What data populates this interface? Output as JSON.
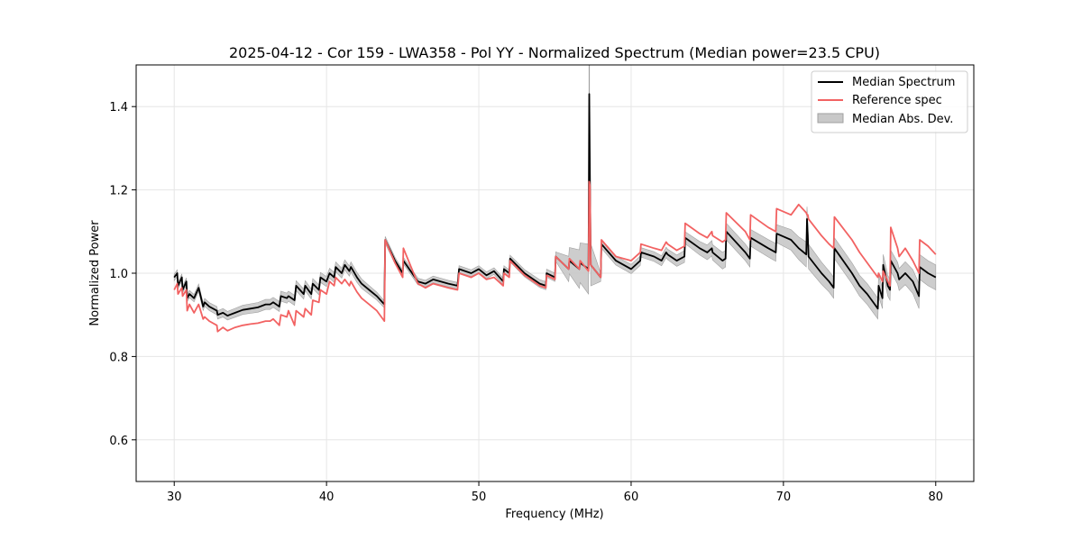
{
  "chart_data": {
    "type": "line",
    "title": "2025-04-12 - Cor 159 - LWA358 - Pol YY - Normalized Spectrum (Median power=23.5 CPU)",
    "xlabel": "Frequency (MHz)",
    "ylabel": "Normalized Power",
    "xlim": [
      27.5,
      82.5
    ],
    "ylim": [
      0.5,
      1.5
    ],
    "xticks": [
      30,
      40,
      50,
      60,
      70,
      80
    ],
    "yticks": [
      0.6,
      0.8,
      1.0,
      1.2,
      1.4
    ],
    "xtick_labels": [
      "30",
      "40",
      "50",
      "60",
      "70",
      "80"
    ],
    "ytick_labels": [
      "0.6",
      "0.8",
      "1.0",
      "1.2",
      "1.4"
    ],
    "grid": true,
    "legend_position": "top-right",
    "legend": [
      "Median Spectrum",
      "Reference spec",
      "Median Abs. Dev."
    ],
    "colors": {
      "median": "#000000",
      "reference": "#f26262",
      "mad_fill": "#c8c8c8",
      "mad_edge": "#a0a0a0",
      "grid": "#e6e6e6"
    },
    "series": [
      {
        "name": "Median Spectrum",
        "x": [
          30.0,
          30.2,
          30.25,
          30.5,
          30.55,
          30.8,
          30.85,
          31.0,
          31.3,
          31.6,
          31.9,
          32.0,
          32.3,
          32.8,
          32.85,
          33.2,
          33.5,
          34.0,
          34.5,
          35.0,
          35.5,
          36.0,
          36.3,
          36.5,
          36.9,
          37.0,
          37.4,
          37.5,
          37.9,
          38.0,
          38.5,
          38.6,
          39.0,
          39.1,
          39.5,
          39.6,
          40.0,
          40.2,
          40.5,
          40.6,
          41.0,
          41.2,
          41.5,
          41.6,
          42.0,
          42.3,
          42.8,
          43.3,
          43.8,
          43.85,
          44.5,
          45.0,
          45.05,
          46.0,
          46.5,
          47.0,
          47.5,
          48.0,
          48.6,
          48.7,
          49.5,
          50.0,
          50.5,
          51.0,
          51.6,
          51.65,
          52.0,
          52.05,
          53.0,
          54.0,
          54.4,
          54.45,
          55.0,
          55.05,
          55.9,
          55.95,
          56.6,
          56.65,
          57.2,
          57.25,
          57.3,
          57.35,
          58.0,
          58.05,
          59.0,
          60.0,
          60.6,
          60.65,
          61.5,
          62.0,
          62.3,
          62.4,
          63.0,
          63.5,
          63.55,
          64.5,
          65.0,
          65.3,
          65.35,
          66.0,
          66.2,
          66.25,
          67.5,
          67.8,
          67.85,
          69.0,
          69.5,
          69.55,
          70.5,
          71.0,
          71.5,
          71.55,
          71.6,
          71.65,
          72.5,
          73.0,
          73.3,
          73.35,
          74.5,
          75.0,
          75.5,
          76.0,
          76.2,
          76.25,
          76.5,
          76.55,
          76.8,
          76.85,
          77.0,
          77.05,
          77.5,
          77.6,
          78.0,
          78.5,
          78.9,
          78.95,
          79.5,
          80.0
        ],
        "values": [
          0.99,
          1.0,
          0.97,
          0.99,
          0.96,
          0.98,
          0.94,
          0.95,
          0.94,
          0.965,
          0.92,
          0.93,
          0.92,
          0.91,
          0.9,
          0.905,
          0.898,
          0.905,
          0.912,
          0.915,
          0.918,
          0.925,
          0.925,
          0.93,
          0.92,
          0.945,
          0.94,
          0.945,
          0.935,
          0.97,
          0.95,
          0.97,
          0.95,
          0.975,
          0.96,
          0.99,
          0.98,
          1.0,
          0.99,
          1.015,
          1.0,
          1.02,
          1.005,
          1.015,
          0.99,
          0.975,
          0.96,
          0.945,
          0.925,
          1.08,
          1.03,
          1.0,
          1.03,
          0.98,
          0.975,
          0.985,
          0.98,
          0.975,
          0.97,
          1.01,
          1.0,
          1.01,
          0.995,
          1.005,
          0.98,
          1.01,
          1.0,
          1.035,
          1.0,
          0.975,
          0.97,
          1.0,
          0.99,
          1.04,
          1.01,
          1.03,
          1.01,
          1.025,
          1.01,
          1.43,
          1.22,
          1.02,
          0.99,
          1.07,
          1.03,
          1.01,
          1.03,
          1.05,
          1.04,
          1.03,
          1.05,
          1.045,
          1.03,
          1.04,
          1.085,
          1.06,
          1.05,
          1.06,
          1.05,
          1.03,
          1.035,
          1.1,
          1.05,
          1.035,
          1.085,
          1.06,
          1.05,
          1.095,
          1.08,
          1.06,
          1.045,
          1.13,
          1.09,
          1.04,
          1.0,
          0.98,
          0.965,
          1.06,
          1.0,
          0.97,
          0.95,
          0.925,
          0.915,
          0.97,
          0.94,
          1.02,
          0.98,
          0.97,
          0.96,
          1.03,
          1.0,
          0.985,
          1.0,
          0.98,
          0.945,
          1.015,
          1.0,
          0.99
        ]
      },
      {
        "name": "Reference spec",
        "x": [
          30.0,
          30.2,
          30.25,
          30.5,
          30.55,
          30.8,
          30.85,
          31.0,
          31.3,
          31.6,
          31.9,
          32.0,
          32.3,
          32.8,
          32.85,
          33.2,
          33.5,
          34.0,
          34.5,
          35.0,
          35.5,
          36.0,
          36.3,
          36.5,
          36.9,
          37.0,
          37.4,
          37.5,
          37.9,
          38.0,
          38.5,
          38.6,
          39.0,
          39.1,
          39.5,
          39.6,
          40.0,
          40.2,
          40.5,
          40.6,
          41.0,
          41.2,
          41.5,
          41.6,
          42.0,
          42.3,
          42.8,
          43.3,
          43.8,
          43.85,
          44.5,
          45.0,
          45.05,
          46.0,
          46.5,
          47.0,
          47.5,
          48.0,
          48.6,
          48.7,
          49.5,
          50.0,
          50.5,
          51.0,
          51.6,
          51.65,
          52.0,
          52.05,
          53.0,
          54.0,
          54.4,
          54.45,
          55.0,
          55.05,
          55.9,
          55.95,
          56.6,
          56.65,
          57.2,
          57.25,
          57.3,
          57.35,
          58.0,
          58.05,
          59.0,
          60.0,
          60.6,
          60.65,
          61.5,
          62.0,
          62.3,
          62.4,
          63.0,
          63.5,
          63.55,
          64.5,
          65.0,
          65.3,
          65.35,
          66.0,
          66.2,
          66.25,
          67.5,
          67.8,
          67.85,
          69.0,
          69.5,
          69.55,
          70.5,
          71.0,
          71.5,
          71.55,
          71.6,
          71.65,
          72.5,
          73.0,
          73.3,
          73.35,
          74.5,
          75.0,
          75.5,
          76.0,
          76.2,
          76.25,
          76.5,
          76.55,
          76.8,
          76.85,
          77.0,
          77.05,
          77.5,
          77.6,
          78.0,
          78.5,
          78.9,
          78.95,
          79.5,
          80.0
        ],
        "values": [
          0.96,
          0.975,
          0.95,
          0.965,
          0.945,
          0.96,
          0.91,
          0.925,
          0.905,
          0.925,
          0.89,
          0.895,
          0.885,
          0.875,
          0.86,
          0.87,
          0.862,
          0.87,
          0.875,
          0.878,
          0.88,
          0.885,
          0.885,
          0.89,
          0.875,
          0.9,
          0.895,
          0.91,
          0.875,
          0.91,
          0.895,
          0.915,
          0.9,
          0.935,
          0.93,
          0.96,
          0.95,
          0.98,
          0.97,
          0.99,
          0.975,
          0.985,
          0.97,
          0.98,
          0.955,
          0.94,
          0.925,
          0.91,
          0.885,
          1.08,
          1.025,
          0.99,
          1.06,
          0.975,
          0.965,
          0.975,
          0.97,
          0.965,
          0.96,
          1.0,
          0.99,
          1.0,
          0.985,
          0.99,
          0.97,
          1.0,
          0.99,
          1.03,
          0.995,
          0.97,
          0.965,
          0.995,
          0.985,
          1.04,
          1.01,
          1.035,
          1.01,
          1.03,
          1.005,
          1.22,
          1.21,
          1.02,
          0.99,
          1.08,
          1.04,
          1.03,
          1.05,
          1.07,
          1.06,
          1.055,
          1.075,
          1.07,
          1.055,
          1.065,
          1.12,
          1.095,
          1.085,
          1.1,
          1.09,
          1.075,
          1.08,
          1.145,
          1.1,
          1.08,
          1.14,
          1.11,
          1.1,
          1.155,
          1.14,
          1.165,
          1.145,
          1.14,
          1.14,
          1.13,
          1.09,
          1.07,
          1.06,
          1.135,
          1.08,
          1.05,
          1.025,
          1.0,
          0.99,
          1.0,
          0.98,
          1.005,
          0.985,
          0.98,
          0.97,
          1.11,
          1.06,
          1.04,
          1.06,
          1.03,
          1.0,
          1.08,
          1.065,
          1.045
        ]
      },
      {
        "name": "Median Abs. Dev.",
        "values_note": "band = median ± mad",
        "mad_x": [
          30.0,
          33.0,
          36.0,
          38.0,
          40.0,
          42.0,
          44.0,
          48.0,
          52.0,
          55.0,
          57.2,
          58.0,
          62.0,
          64.0,
          66.0,
          68.0,
          70.0,
          71.5,
          73.0,
          75.0,
          76.0,
          77.0,
          79.0,
          80.0
        ],
        "mad": [
          0.008,
          0.01,
          0.012,
          0.012,
          0.012,
          0.012,
          0.008,
          0.008,
          0.008,
          0.01,
          0.06,
          0.01,
          0.012,
          0.015,
          0.02,
          0.02,
          0.022,
          0.03,
          0.025,
          0.025,
          0.025,
          0.025,
          0.03,
          0.03
        ]
      }
    ]
  }
}
